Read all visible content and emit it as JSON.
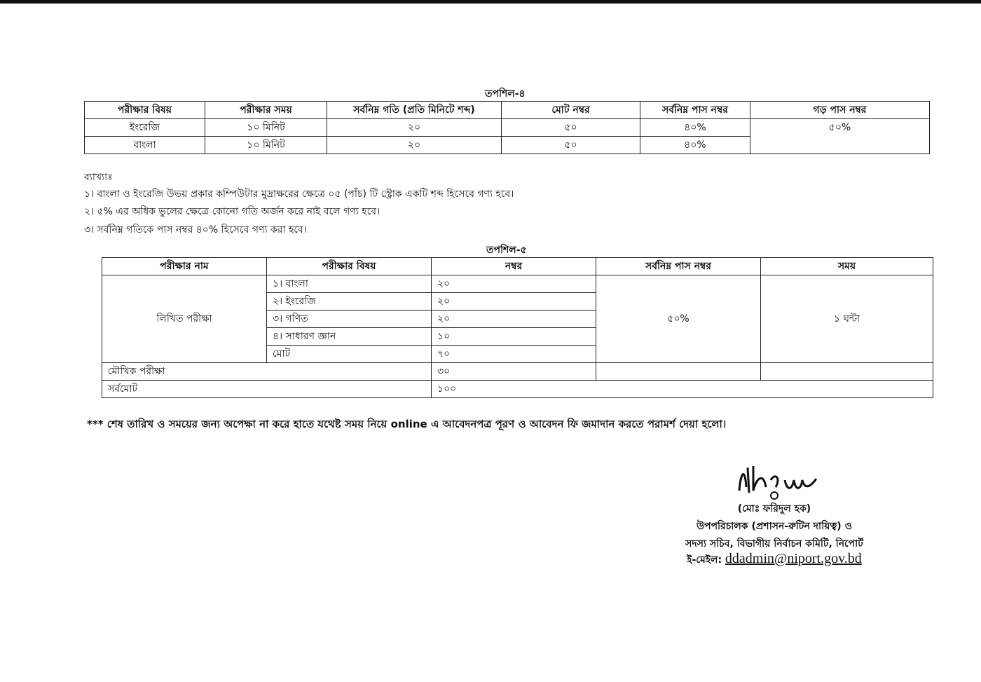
{
  "table4": {
    "title": "তপশিল-৪",
    "headers": [
      "পরীক্ষার বিষয়",
      "পরীক্ষার সময়",
      "সর্বনিম্ন গতি (প্রতি মিনিটে শব্দ)",
      "মোট নম্বর",
      "সর্বনিম্ন পাস নম্বর",
      "গড় পাস নম্বর"
    ],
    "rows": [
      [
        "ইংরেজি",
        "১০ মিনিট",
        "২০",
        "৫০",
        "৪০%"
      ],
      [
        "বাংলা",
        "১০ মিনিট",
        "২০",
        "৫০",
        "৪০%"
      ]
    ],
    "avg_pass": "৫০%"
  },
  "notes": {
    "heading": "ব্যাখ্যাঃ",
    "items": [
      "১। বাংলা ও ইংরেজি উভয় প্রকার কম্পিউটার মুদ্রাক্ষরের ক্ষেত্রে ০৫ (পাঁচ) টি স্ট্রোক একটি শব্দ হিসেবে গণ্য হবে।",
      "২। ৫% এর অধিক ভুলের ক্ষেত্রে কোনো গতি অর্জন করে নাই বলে গণ্য হবে।",
      "৩। সর্বনিম্ন গতিকে পাস নম্বর ৪০% হিসেবে গণ্য করা হবে।"
    ]
  },
  "table5": {
    "title": "তপশিল-৫",
    "headers": [
      "পরীক্ষার নাম",
      "পরীক্ষার বিষয়",
      "নম্বর",
      "সর্বনিম্ন পাস নম্বর",
      "সময়"
    ],
    "written": "লিখিত পরীক্ষা",
    "subjects": [
      [
        "১। বাংলা",
        "২০"
      ],
      [
        "২। ইংরেজি",
        "২০"
      ],
      [
        "৩। গণিত",
        "২০"
      ],
      [
        "৪। সাধারণ জ্ঞান",
        "১০"
      ],
      [
        "মোট",
        "৭০"
      ]
    ],
    "pass": "৫০%",
    "time": "১ ঘন্টা",
    "viva": "মৌখিক পরীক্ষা",
    "viva_marks": "৩০",
    "grand": "সর্বমোট",
    "grand_marks": "১০০"
  },
  "footer_note": "*** শেষ তারিখ ও সময়ের জন্য অপেক্ষা না করে হাতে যথেষ্ট সময় নিয়ে online এ আবেদনপত্র পূরণ ও আবেদন ফি জমাদান করতে পরামর্শ দেয়া হলো।",
  "signature": {
    "name": "(মোঃ ফরিদুল হক)",
    "title1": "উপপরিচালক (প্রশাসন-রুটিন দায়িত্ব) ও",
    "title2": "সদস্য সচিব, বিভাগীয় নির্বাচন কমিটি, নিপোর্ট",
    "email_label": "ই-মেইল:",
    "email": "ddadmin@niport.gov.bd"
  }
}
